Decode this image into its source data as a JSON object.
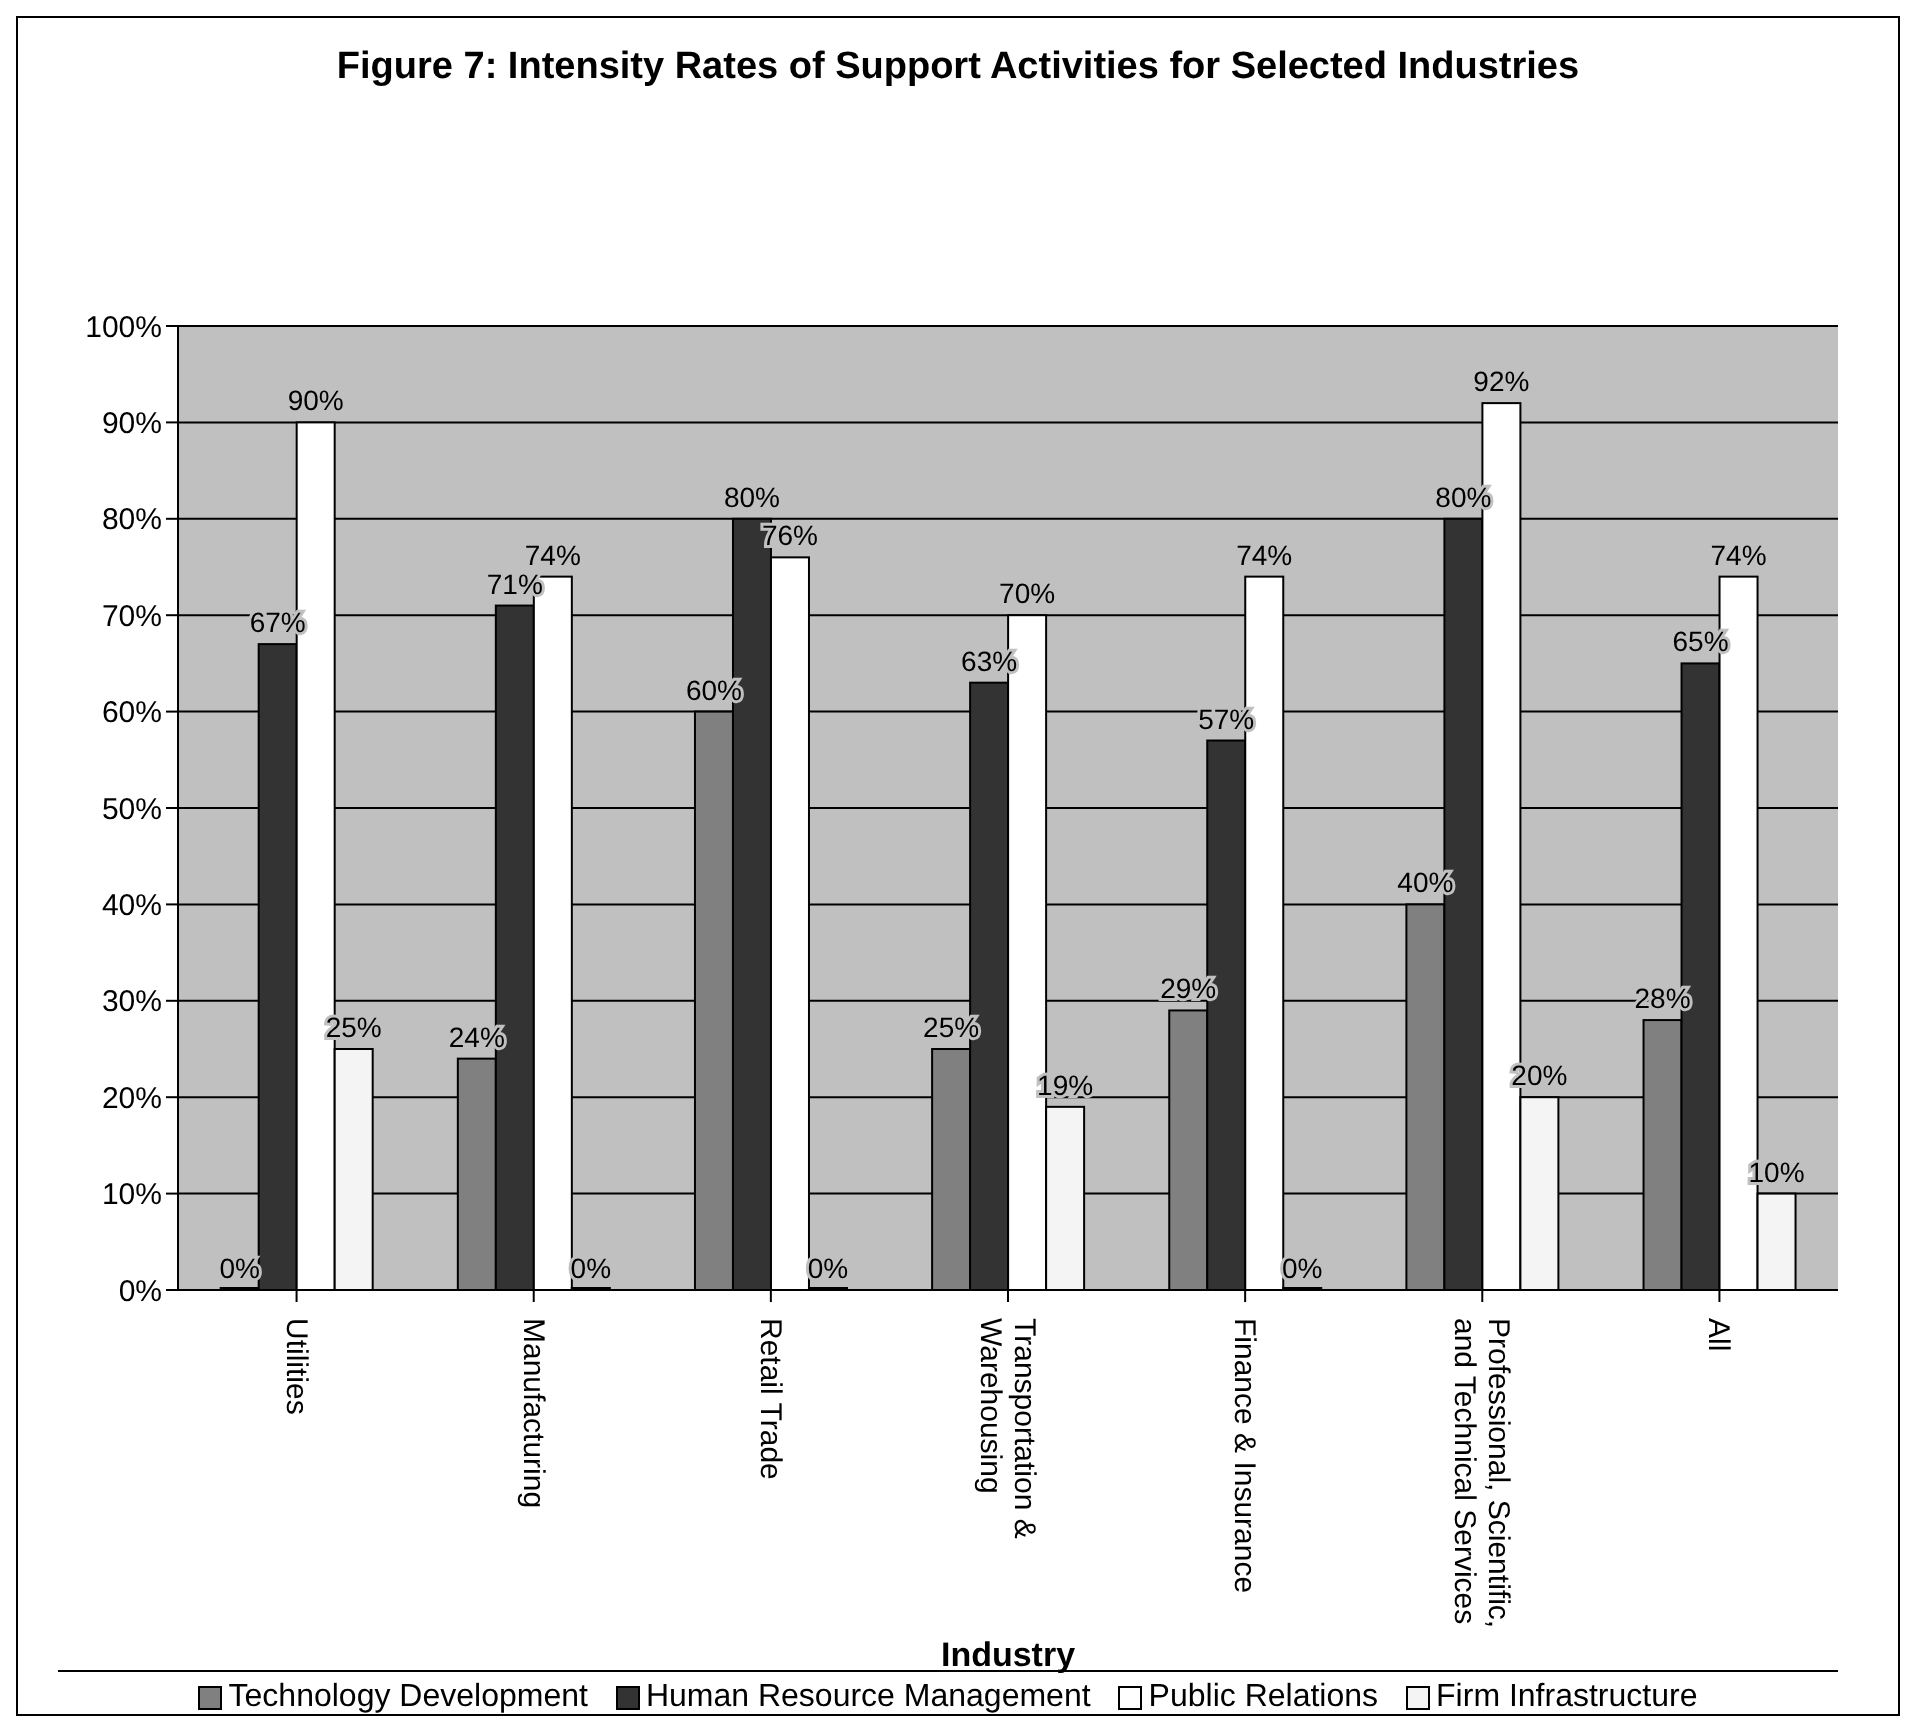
{
  "chart_data": {
    "type": "bar",
    "title": "Figure 7: Intensity Rates of Support Activities for Selected Industries",
    "xlabel": "Industry",
    "categories": [
      "Utilities",
      "Manufacturing",
      "Retail Trade",
      "Transportation & Warehousing",
      "Finance & Insurance",
      "Professional, Scientific, and Technical Services",
      "All"
    ],
    "series": [
      {
        "name": "Technology Development",
        "color": "#808080",
        "values": [
          0,
          24,
          60,
          25,
          29,
          40,
          28
        ],
        "value_labels": [
          "0%",
          "24%",
          "60%",
          "25%",
          "29%",
          "40%",
          "28%"
        ]
      },
      {
        "name": "Human Resource Management",
        "color": "#333333",
        "values": [
          67,
          71,
          80,
          63,
          57,
          80,
          65
        ],
        "value_labels": [
          "67%",
          "71%",
          "80%",
          "63%",
          "57%",
          "80%",
          "65%"
        ]
      },
      {
        "name": "Public Relations",
        "color": "#ffffff",
        "values": [
          90,
          74,
          76,
          70,
          74,
          92,
          74
        ],
        "value_labels": [
          "90%",
          "74%",
          "76%",
          "70%",
          "74%",
          "92%",
          "74%"
        ]
      },
      {
        "name": "Firm Infrastructure",
        "color": "#f4f4f4",
        "values": [
          25,
          0,
          0,
          19,
          0,
          20,
          10
        ],
        "value_labels": [
          "25%",
          "0%",
          "0%",
          "19%",
          "0%",
          "20%",
          "10%"
        ]
      }
    ],
    "ylim": [
      0,
      100
    ],
    "yticks": [
      {
        "value": 0,
        "label": "0%"
      },
      {
        "value": 10,
        "label": "10%"
      },
      {
        "value": 20,
        "label": "20%"
      },
      {
        "value": 30,
        "label": "30%"
      },
      {
        "value": 40,
        "label": "40%"
      },
      {
        "value": 50,
        "label": "50%"
      },
      {
        "value": 60,
        "label": "60%"
      },
      {
        "value": 70,
        "label": "70%"
      },
      {
        "value": 80,
        "label": "80%"
      },
      {
        "value": 90,
        "label": "90%"
      },
      {
        "value": 100,
        "label": "100%"
      }
    ],
    "grid": "y",
    "legend": "bottom"
  }
}
